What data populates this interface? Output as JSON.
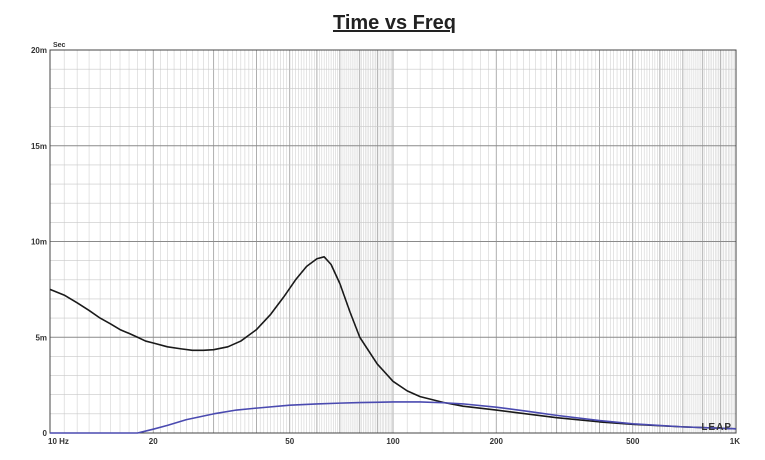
{
  "chart_data": {
    "type": "line",
    "title": "Time vs Freq",
    "y_unit": "Sec",
    "x_scale": "log",
    "y_scale": "linear",
    "xlim": [
      10,
      1000
    ],
    "ylim": [
      0,
      0.02
    ],
    "grid": true,
    "x_ticks": [
      {
        "value": 10,
        "label": "10  Hz"
      },
      {
        "value": 20,
        "label": "20"
      },
      {
        "value": 50,
        "label": "50"
      },
      {
        "value": 100,
        "label": "100"
      },
      {
        "value": 200,
        "label": "200"
      },
      {
        "value": 500,
        "label": "500"
      },
      {
        "value": 1000,
        "label": "1K"
      }
    ],
    "y_ticks": [
      {
        "value": 0,
        "label": "0"
      },
      {
        "value": 0.005,
        "label": "5m"
      },
      {
        "value": 0.01,
        "label": "10m"
      },
      {
        "value": 0.015,
        "label": "15m"
      },
      {
        "value": 0.02,
        "label": "20m"
      }
    ],
    "series": [
      {
        "color": "#1a1a1a",
        "x": [
          10,
          11,
          12,
          13,
          14,
          15,
          16,
          17,
          18,
          19,
          20,
          22,
          24,
          26,
          28,
          30,
          33,
          36,
          40,
          44,
          48,
          52,
          56,
          60,
          63,
          66,
          70,
          75,
          80,
          90,
          100,
          110,
          120,
          140,
          160,
          200,
          300,
          400,
          500,
          700,
          1000
        ],
        "y": [
          0.0075,
          0.0072,
          0.0068,
          0.0064,
          0.006,
          0.0057,
          0.0054,
          0.0052,
          0.005,
          0.0048,
          0.0047,
          0.0045,
          0.0044,
          0.00432,
          0.00432,
          0.00435,
          0.0045,
          0.0048,
          0.0054,
          0.0062,
          0.0071,
          0.008,
          0.0087,
          0.0091,
          0.0092,
          0.0088,
          0.0078,
          0.0063,
          0.005,
          0.0036,
          0.0027,
          0.0022,
          0.0019,
          0.0016,
          0.0014,
          0.0012,
          0.0008,
          0.00058,
          0.00045,
          0.00032,
          0.00022
        ]
      },
      {
        "color": "#4a4ab0",
        "x": [
          10,
          15,
          18,
          19,
          20,
          22,
          25,
          30,
          35,
          40,
          50,
          60,
          70,
          80,
          100,
          120,
          140,
          160,
          200,
          250,
          300,
          400,
          500,
          700,
          1000
        ],
        "y": [
          0,
          0,
          0,
          0.0001,
          0.0002,
          0.0004,
          0.0007,
          0.001,
          0.0012,
          0.0013,
          0.00145,
          0.00152,
          0.00156,
          0.00159,
          0.00162,
          0.00162,
          0.00158,
          0.00152,
          0.00135,
          0.00112,
          0.00092,
          0.00065,
          0.00048,
          0.00032,
          0.00022
        ]
      }
    ],
    "logo": "LEAP"
  }
}
